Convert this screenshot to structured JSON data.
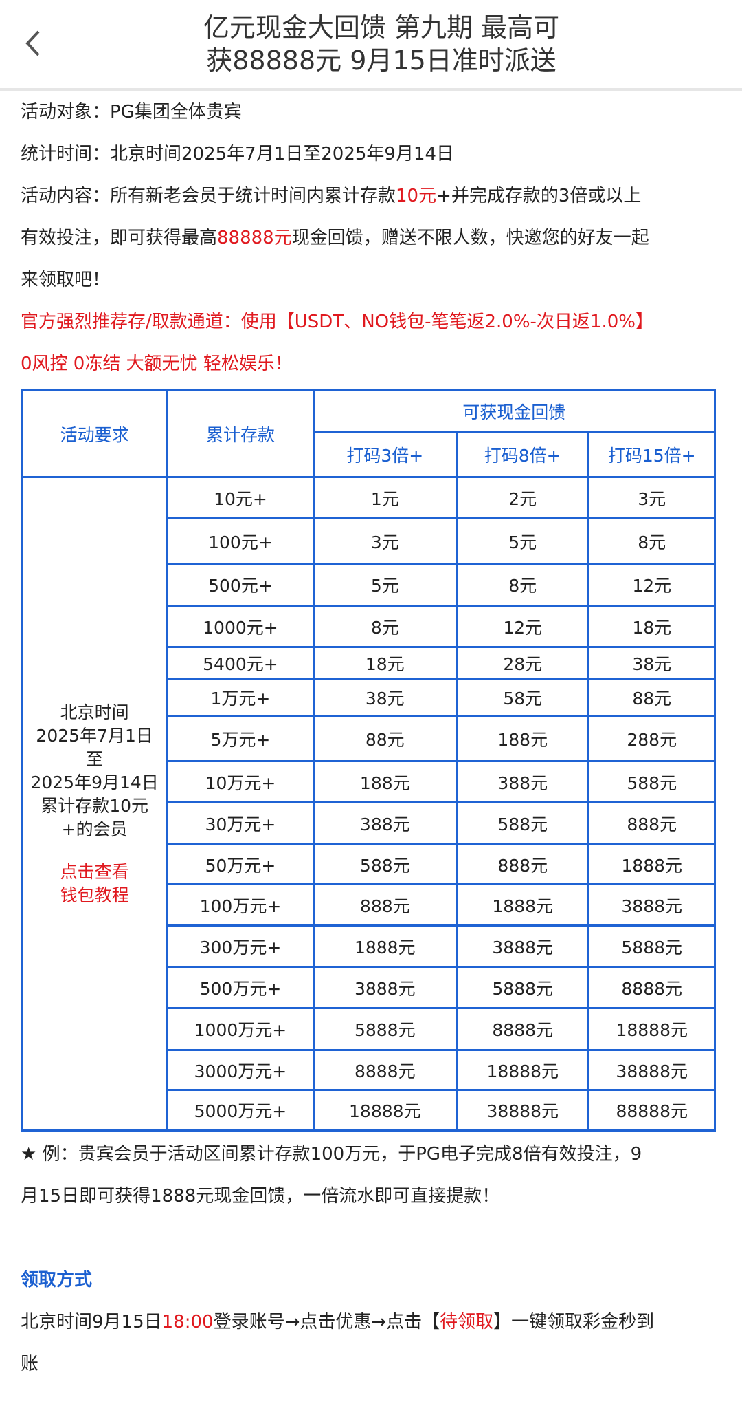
{
  "header": {
    "title_line1": "亿元现金大回馈 第九期 最高可",
    "title_line2": "获88888元 9月15日准时派送"
  },
  "intro": {
    "target": "活动对象：PG集团全体贵宾",
    "period": "统计时间：北京时间2025年7月1日至2025年9月14日",
    "content_a": "活动内容：所有新老会员于统计时间内累计存款",
    "content_red1": "10元",
    "content_b": "+并完成存款的3倍或以上",
    "content_c": "有效投注，即可获得最高",
    "content_red2": "88888元",
    "content_d": "现金回馈，赠送不限人数，快邀您的好友一起",
    "content_e": "来领取吧！",
    "channel": "官方强烈推荐存/取款通道：使用【USDT、NO钱包-笔笔返2.0%-次日返1.0%】",
    "slogan": "0风控 0冻结 大额无忧 轻松娱乐！"
  },
  "table": {
    "h_requirement": "活动要求",
    "h_deposit": "累计存款",
    "h_cashback": "可获现金回馈",
    "h_tiers": [
      "打码3倍+",
      "打码8倍+",
      "打码15倍+"
    ],
    "requirement_lines": [
      "北京时间",
      "2025年7月1日",
      "至",
      "2025年9月14日",
      "累计存款10元",
      "+的会员"
    ],
    "tutorial_lines": [
      "点击查看",
      "钱包教程"
    ],
    "rows": [
      [
        "10元+",
        "1元",
        "2元",
        "3元"
      ],
      [
        "100元+",
        "3元",
        "5元",
        "8元"
      ],
      [
        "500元+",
        "5元",
        "8元",
        "12元"
      ],
      [
        "1000元+",
        "8元",
        "12元",
        "18元"
      ],
      [
        "5400元+",
        "18元",
        "28元",
        "38元"
      ],
      [
        "1万元+",
        "38元",
        "58元",
        "88元"
      ],
      [
        "5万元+",
        "88元",
        "188元",
        "288元"
      ],
      [
        "10万元+",
        "188元",
        "388元",
        "588元"
      ],
      [
        "30万元+",
        "388元",
        "588元",
        "888元"
      ],
      [
        "50万元+",
        "588元",
        "888元",
        "1888元"
      ],
      [
        "100万元+",
        "888元",
        "1888元",
        "3888元"
      ],
      [
        "300万元+",
        "1888元",
        "3888元",
        "5888元"
      ],
      [
        "500万元+",
        "3888元",
        "5888元",
        "8888元"
      ],
      [
        "1000万元+",
        "5888元",
        "8888元",
        "18888元"
      ],
      [
        "3000万元+",
        "8888元",
        "18888元",
        "38888元"
      ],
      [
        "5000万元+",
        "18888元",
        "38888元",
        "88888元"
      ]
    ]
  },
  "example": {
    "line1": "★ 例：贵宾会员于活动区间累计存款100万元，于PG电子完成8倍有效投注，9",
    "line2": "月15日即可获得1888元现金回馈，一倍流水即可直接提款！"
  },
  "claim": {
    "heading": "领取方式",
    "a": "北京时间9月15日",
    "time_red": "18:00",
    "b": "登录账号→点击优惠→点击【",
    "pending_red": "待领取",
    "c": "】一键领取彩金秒到",
    "d": "账"
  },
  "colors": {
    "accent_blue": "#1a5fd0",
    "highlight_red": "#e0191f",
    "border_blue": "#1f63d4"
  }
}
